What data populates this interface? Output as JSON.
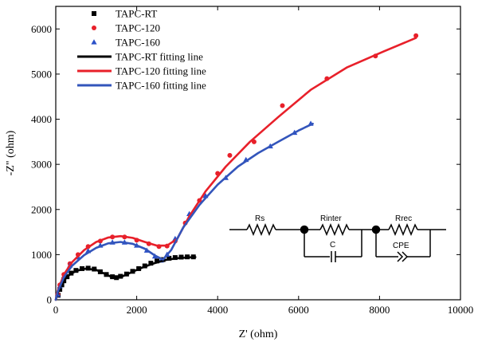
{
  "chart_data": {
    "type": "scatter",
    "xlabel": "Z' (ohm)",
    "ylabel": "-Z\" (ohm)",
    "xlim": [
      0,
      10000
    ],
    "ylim": [
      0,
      6500
    ],
    "xticks": [
      0,
      2000,
      4000,
      6000,
      8000,
      10000
    ],
    "yticks": [
      0,
      1000,
      2000,
      3000,
      4000,
      5000,
      6000
    ],
    "legend_position": "top-left",
    "series": [
      {
        "name": "TAPC-RT",
        "kind": "points",
        "marker": "square",
        "color": "#000000",
        "x": [
          60,
          100,
          150,
          200,
          280,
          380,
          500,
          650,
          800,
          950,
          1100,
          1250,
          1400,
          1500,
          1600,
          1750,
          1900,
          2050,
          2200,
          2350,
          2500,
          2650,
          2800,
          2950,
          3100,
          3250,
          3400
        ],
        "y": [
          100,
          230,
          330,
          420,
          510,
          590,
          650,
          690,
          700,
          680,
          620,
          560,
          510,
          490,
          520,
          570,
          630,
          690,
          750,
          810,
          860,
          890,
          920,
          935,
          945,
          950,
          950
        ]
      },
      {
        "name": "TAPC-120",
        "kind": "points",
        "marker": "circle",
        "color": "#e8202a",
        "x": [
          50,
          100,
          200,
          350,
          550,
          800,
          1100,
          1400,
          1700,
          2000,
          2300,
          2550,
          2750,
          2950,
          3200,
          3550,
          4000,
          4300,
          4900,
          5600,
          6700,
          7900,
          8900
        ],
        "y": [
          120,
          330,
          560,
          800,
          1000,
          1180,
          1300,
          1390,
          1390,
          1320,
          1240,
          1180,
          1190,
          1300,
          1700,
          2200,
          2800,
          3200,
          3500,
          4300,
          4900,
          5400,
          5850
        ]
      },
      {
        "name": "TAPC-160",
        "kind": "points",
        "marker": "triangle",
        "color": "#2a50c8",
        "x": [
          50,
          100,
          200,
          350,
          550,
          800,
          1100,
          1400,
          1700,
          2000,
          2250,
          2450,
          2600,
          2750,
          2950,
          3300,
          3700,
          4200,
          4700,
          5300,
          5900,
          6300
        ],
        "y": [
          110,
          300,
          520,
          760,
          940,
          1080,
          1200,
          1270,
          1270,
          1200,
          1090,
          960,
          870,
          1000,
          1350,
          1900,
          2300,
          2700,
          3100,
          3400,
          3700,
          3900
        ]
      },
      {
        "name": "TAPC-RT fitting line",
        "kind": "line",
        "color": "#000000",
        "x": [
          0,
          50,
          150,
          300,
          500,
          750,
          1000,
          1250,
          1400,
          1500,
          1650,
          1850,
          2100,
          2400,
          2700,
          3000,
          3300,
          3450
        ],
        "y": [
          0,
          150,
          360,
          530,
          640,
          690,
          660,
          560,
          495,
          480,
          520,
          600,
          700,
          800,
          880,
          920,
          940,
          945
        ]
      },
      {
        "name": "TAPC-120 fitting line",
        "kind": "line",
        "color": "#e8202a",
        "x": [
          0,
          50,
          200,
          400,
          700,
          1000,
          1300,
          1600,
          1900,
          2200,
          2500,
          2750,
          3000,
          3300,
          3700,
          4200,
          4800,
          5500,
          6300,
          7200,
          8100,
          8900
        ],
        "y": [
          0,
          200,
          560,
          830,
          1100,
          1280,
          1380,
          1410,
          1370,
          1280,
          1200,
          1200,
          1350,
          1850,
          2400,
          2950,
          3500,
          4050,
          4650,
          5150,
          5500,
          5800
        ]
      },
      {
        "name": "TAPC-160 fitting line",
        "kind": "line",
        "color": "#3355bb",
        "x": [
          0,
          50,
          200,
          400,
          700,
          1000,
          1300,
          1600,
          1900,
          2200,
          2450,
          2650,
          2850,
          3150,
          3550,
          4000,
          4500,
          5000,
          5500,
          6000,
          6350
        ],
        "y": [
          0,
          180,
          500,
          750,
          990,
          1150,
          1250,
          1280,
          1240,
          1130,
          980,
          890,
          1100,
          1600,
          2100,
          2550,
          2950,
          3250,
          3500,
          3750,
          3900
        ]
      }
    ],
    "inset_circuit": {
      "labels": [
        "Rs",
        "Rinter",
        "C",
        "Rrec",
        "CPE"
      ]
    }
  }
}
